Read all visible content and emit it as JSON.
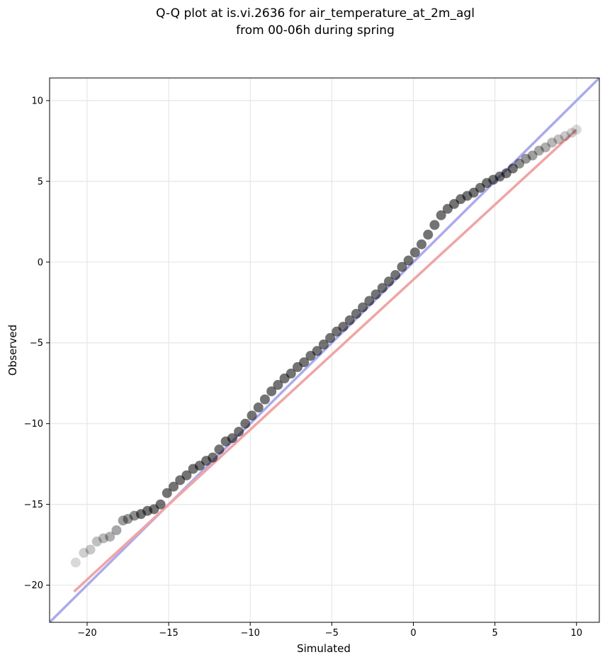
{
  "chart_data": {
    "type": "scatter",
    "title_lines": [
      "Q-Q plot at is.vi.2636 for air_temperature_at_2m_agl",
      "from 00-06h during spring"
    ],
    "xlabel": "Simulated",
    "ylabel": "Observed",
    "xlim": [
      -22.3,
      11.4
    ],
    "ylim": [
      -22.3,
      11.4
    ],
    "xticks": [
      -20,
      -15,
      -10,
      -5,
      0,
      5,
      10
    ],
    "yticks": [
      -20,
      -15,
      -10,
      -5,
      0,
      5,
      10
    ],
    "xtick_labels": [
      "−20",
      "−15",
      "−10",
      "−5",
      "0",
      "5",
      "10"
    ],
    "ytick_labels": [
      "−20",
      "−15",
      "−10",
      "−5",
      "0",
      "5",
      "10"
    ],
    "grid": true,
    "quantile_points": {
      "x": [
        -20.7,
        -20.2,
        -19.8,
        -19.4,
        -19.0,
        -18.6,
        -18.2,
        -17.8,
        -17.5,
        -17.1,
        -16.7,
        -16.3,
        -15.9,
        -15.5,
        -15.1,
        -14.7,
        -14.3,
        -13.9,
        -13.5,
        -13.1,
        -12.7,
        -12.3,
        -11.9,
        -11.5,
        -11.1,
        -10.7,
        -10.3,
        -9.9,
        -9.5,
        -9.1,
        -8.7,
        -8.3,
        -7.9,
        -7.5,
        -7.1,
        -6.7,
        -6.3,
        -5.9,
        -5.5,
        -5.1,
        -4.7,
        -4.3,
        -3.9,
        -3.5,
        -3.1,
        -2.7,
        -2.3,
        -1.9,
        -1.5,
        -1.1,
        -0.7,
        -0.3,
        0.1,
        0.5,
        0.9,
        1.3,
        1.7,
        2.1,
        2.5,
        2.9,
        3.3,
        3.7,
        4.1,
        4.5,
        4.9,
        5.3,
        5.7,
        6.1,
        6.5,
        6.9,
        7.3,
        7.7,
        8.1,
        8.5,
        8.9,
        9.3,
        9.7,
        10.0
      ],
      "y": [
        -18.6,
        -18.0,
        -17.8,
        -17.3,
        -17.1,
        -17.0,
        -16.6,
        -16.0,
        -15.9,
        -15.7,
        -15.6,
        -15.4,
        -15.3,
        -15.0,
        -14.3,
        -13.9,
        -13.5,
        -13.2,
        -12.8,
        -12.6,
        -12.3,
        -12.1,
        -11.6,
        -11.1,
        -10.9,
        -10.5,
        -10.0,
        -9.5,
        -9.0,
        -8.5,
        -8.0,
        -7.6,
        -7.2,
        -6.9,
        -6.5,
        -6.2,
        -5.8,
        -5.5,
        -5.1,
        -4.7,
        -4.3,
        -4.0,
        -3.6,
        -3.2,
        -2.8,
        -2.4,
        -2.0,
        -1.6,
        -1.2,
        -0.8,
        -0.3,
        0.1,
        0.6,
        1.1,
        1.7,
        2.3,
        2.9,
        3.3,
        3.6,
        3.9,
        4.1,
        4.3,
        4.6,
        4.9,
        5.1,
        5.3,
        5.5,
        5.8,
        6.1,
        6.4,
        6.6,
        6.9,
        7.1,
        7.4,
        7.6,
        7.8,
        8.0,
        8.2
      ],
      "color": "#000000"
    },
    "fit_line": {
      "x": [
        -20.8,
        10.0
      ],
      "y": [
        -20.4,
        8.2
      ],
      "color": "#f4a3a3"
    },
    "identity_line": {
      "x": [
        -22.3,
        11.4
      ],
      "y": [
        -22.3,
        11.4
      ],
      "color": "#aaaaf0"
    }
  }
}
